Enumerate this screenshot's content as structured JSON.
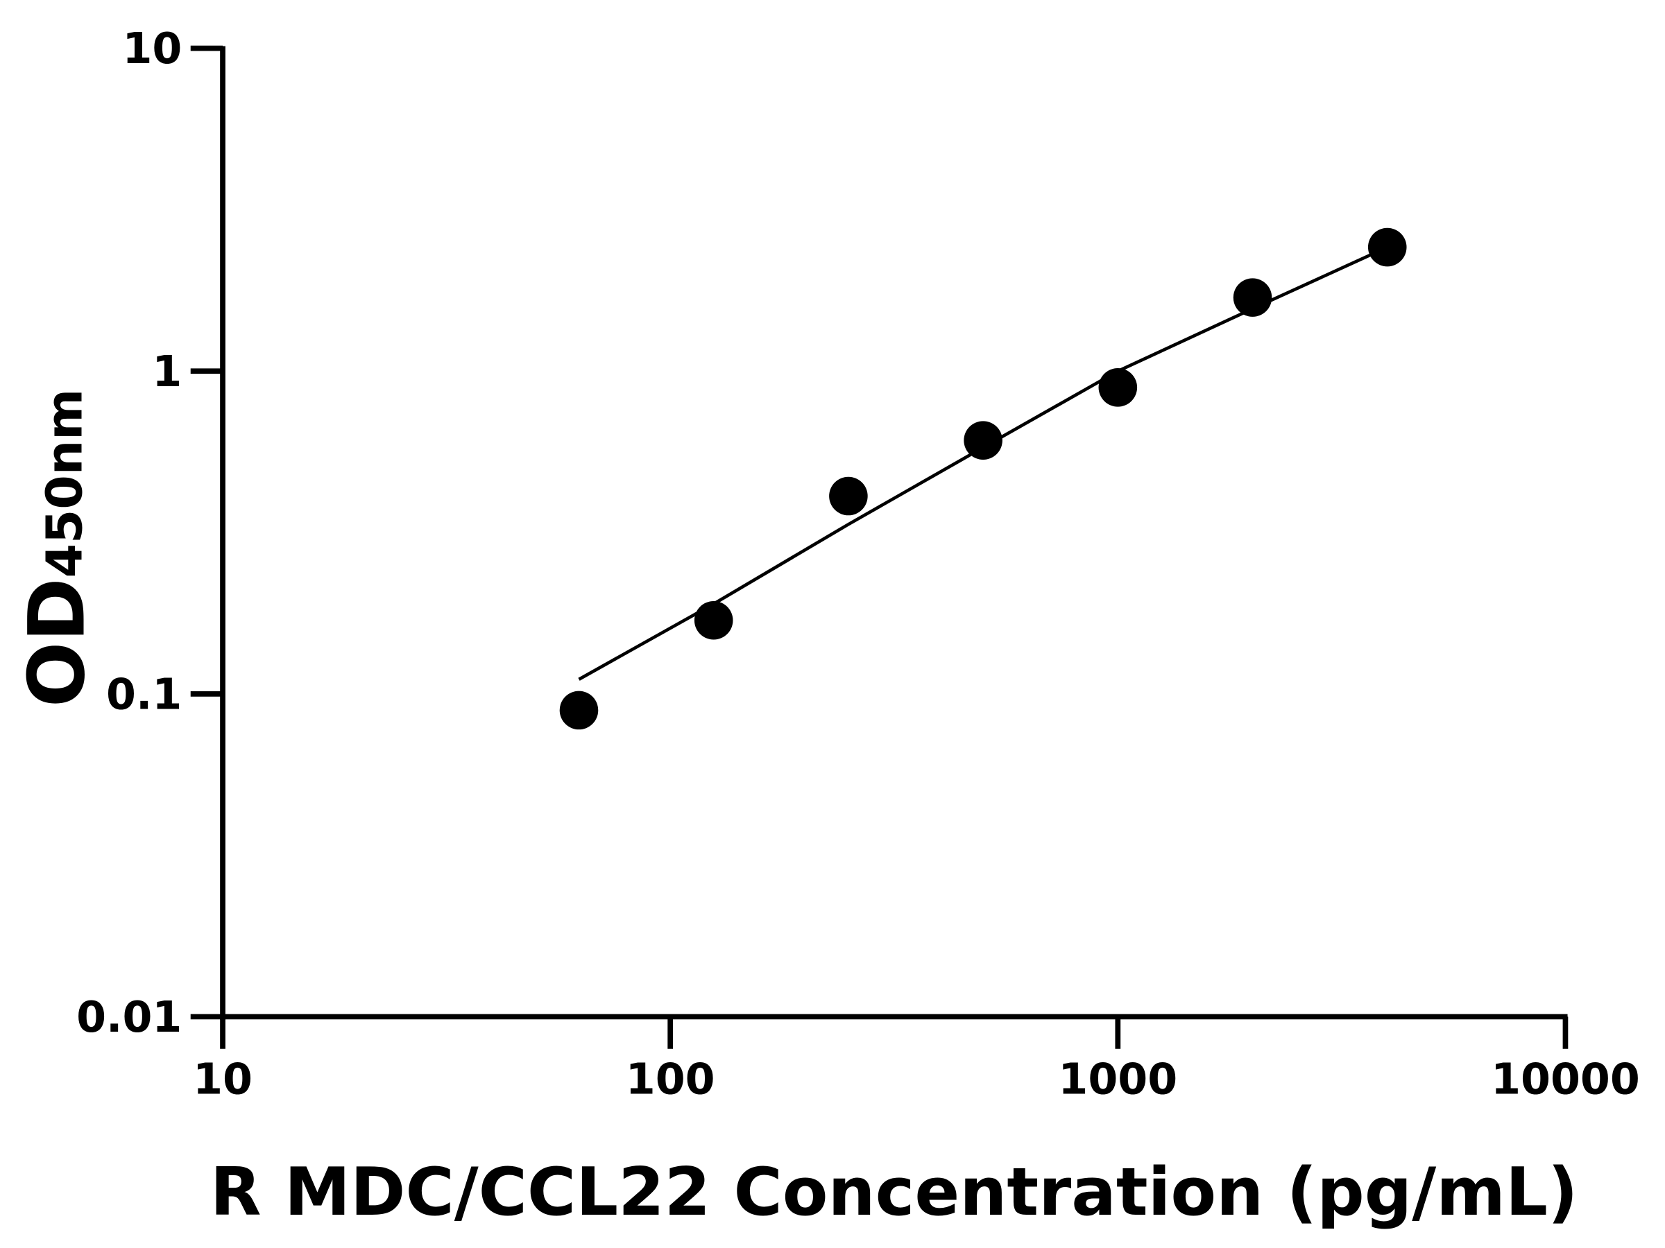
{
  "chart_data": {
    "type": "scatter",
    "title": "",
    "xlabel": "R MDC/CCL22 Concentration (pg/mL)",
    "ylabel": {
      "main": "OD",
      "sub": "450nm"
    },
    "x_scale": "log",
    "y_scale": "log",
    "xlim": [
      10,
      10000
    ],
    "ylim": [
      0.01,
      10
    ],
    "x_ticks": [
      "10",
      "100",
      "1000",
      "10000"
    ],
    "y_ticks": [
      "0.01",
      "0.1",
      "1",
      "10"
    ],
    "grid": false,
    "legend": "none",
    "points": {
      "x": [
        62.5,
        125,
        250,
        500,
        1000,
        2000,
        4000
      ],
      "y": [
        0.089,
        0.169,
        0.41,
        0.61,
        0.89,
        1.69,
        2.42
      ]
    },
    "fit_curve": {
      "x": [
        62.5,
        125,
        250,
        500,
        1000,
        2000,
        4000
      ],
      "y": [
        0.111,
        0.19,
        0.335,
        0.58,
        1.0,
        1.56,
        2.42
      ]
    },
    "colors": {
      "marker": "#000000",
      "line": "#000000"
    }
  }
}
